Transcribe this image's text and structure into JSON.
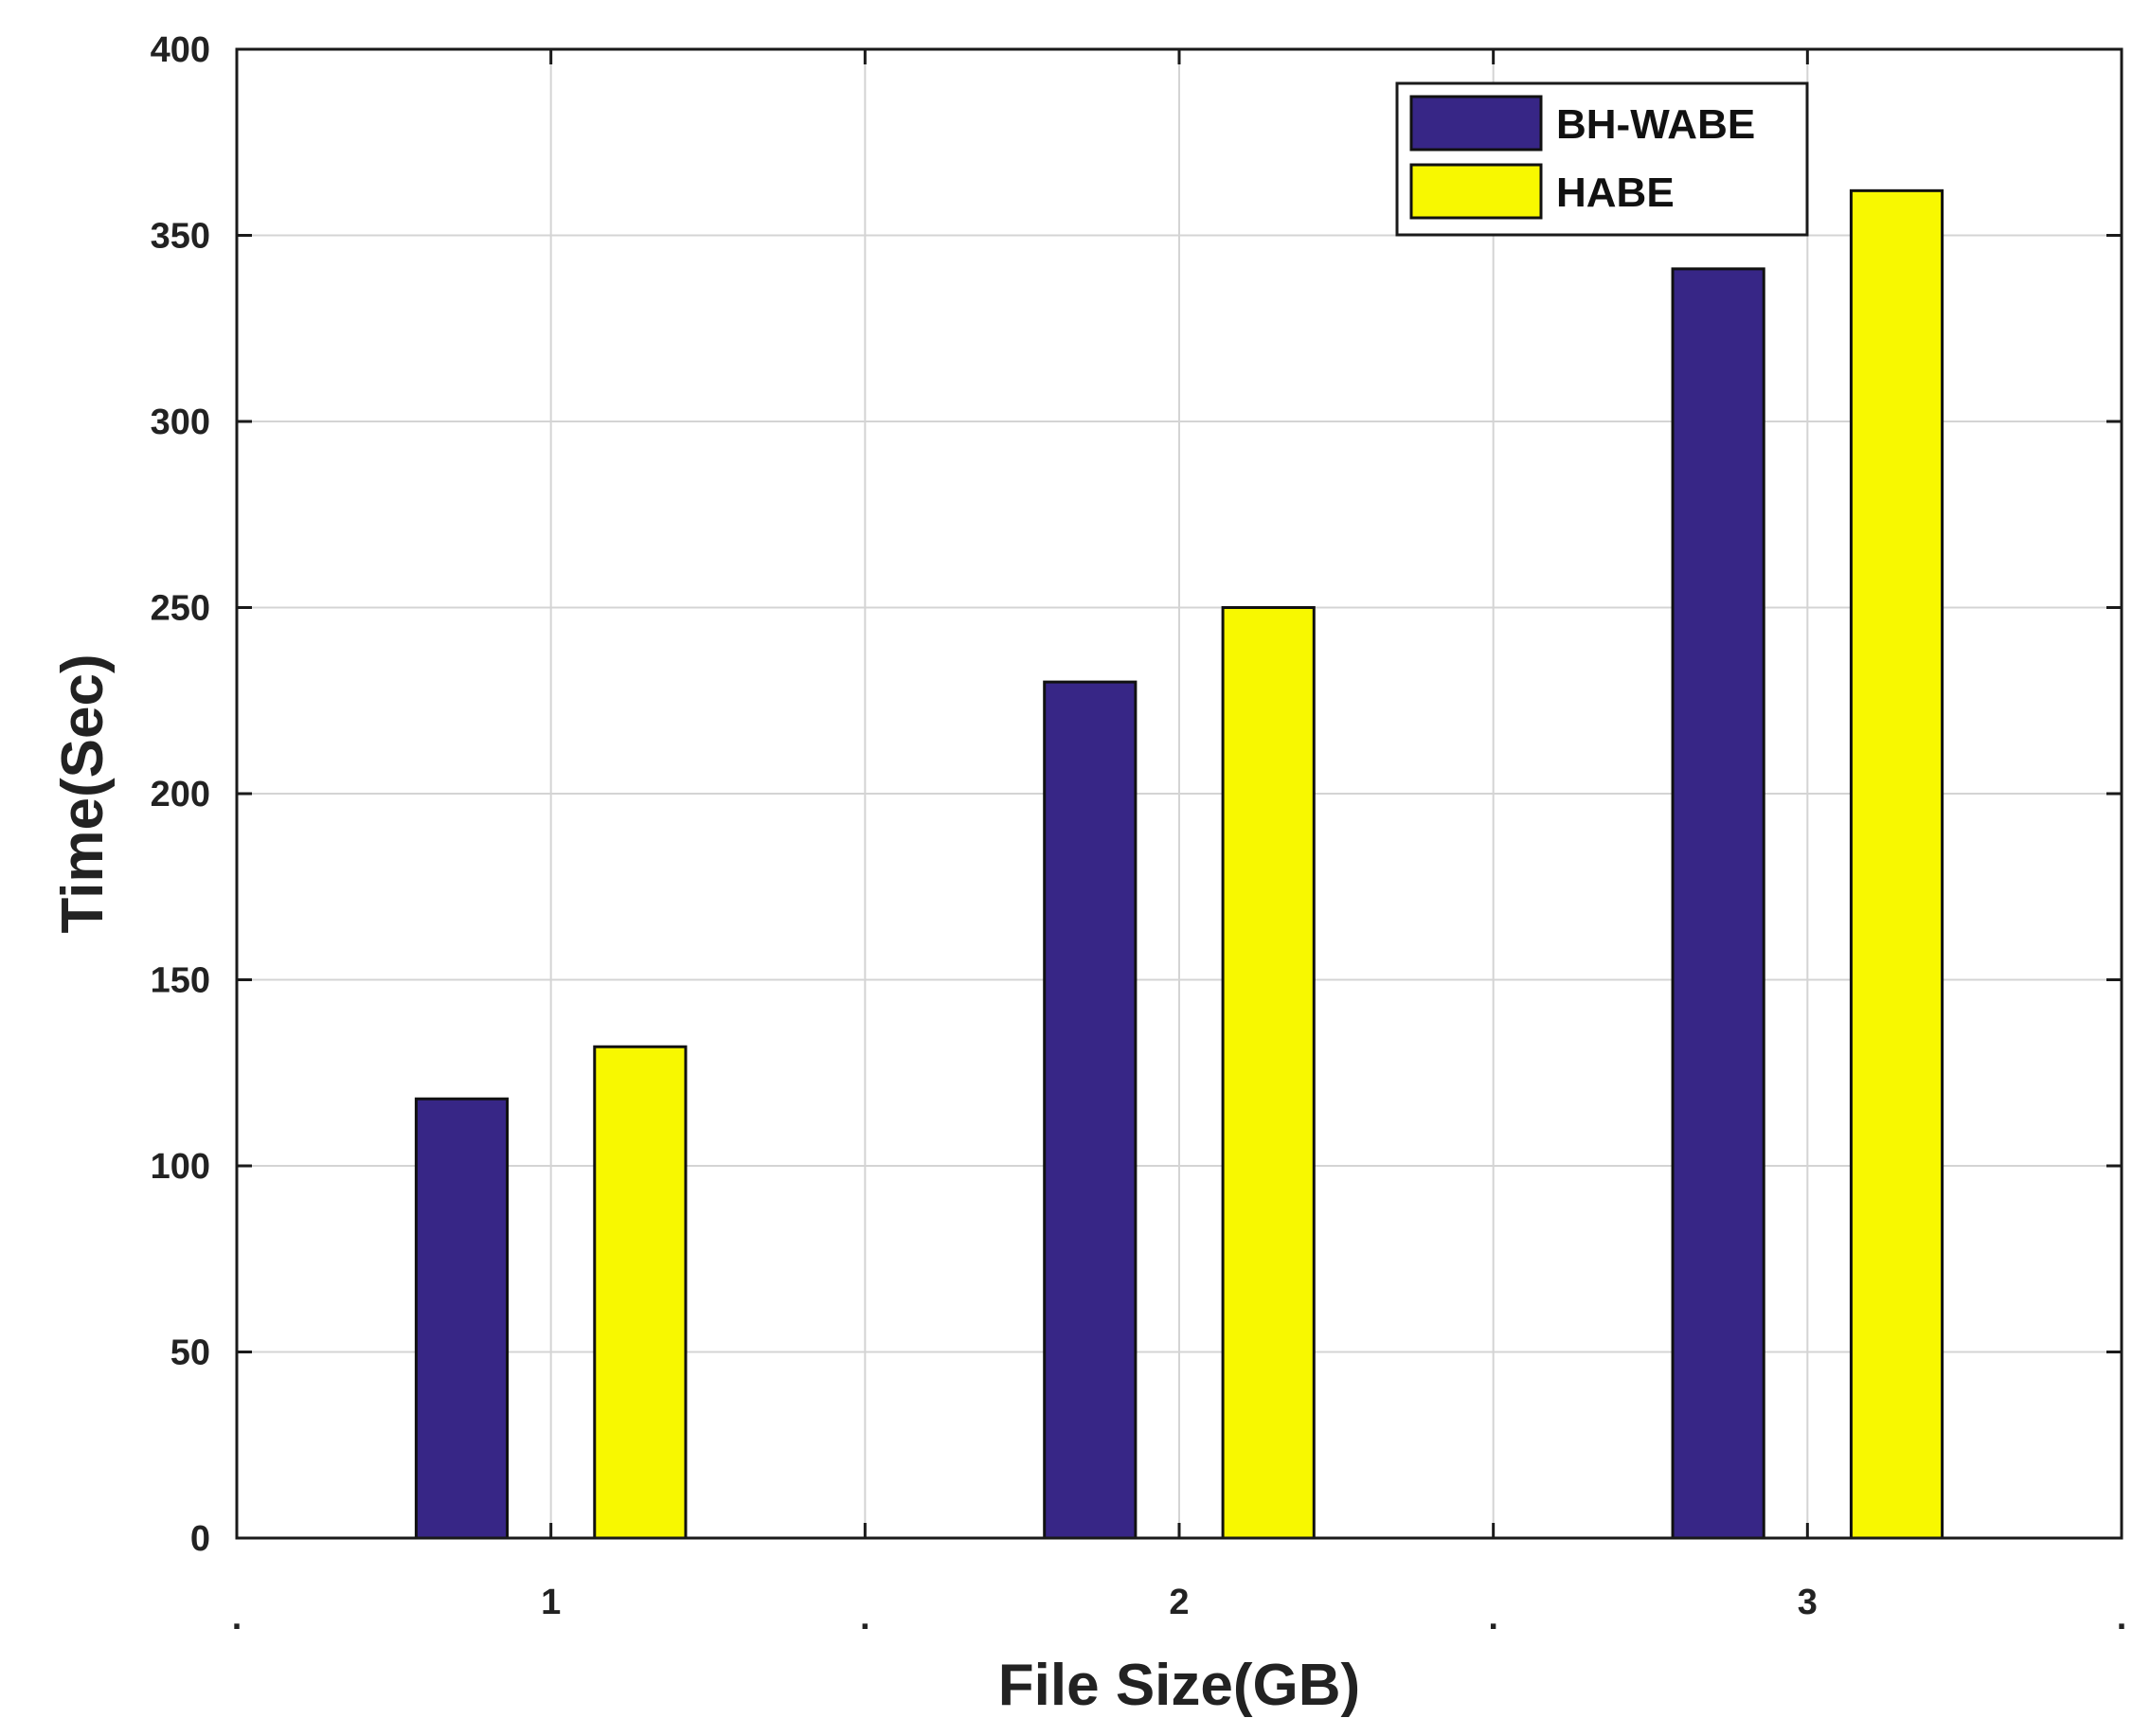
{
  "chart_data": {
    "type": "bar",
    "categories": [
      "1",
      "2",
      "3"
    ],
    "x_positions": [
      1,
      2,
      3
    ],
    "xlim": [
      0.5,
      3.5
    ],
    "x_minor_ticks": [
      0.5,
      1.5,
      2.5,
      3.5
    ],
    "x_minor_tick_label": ".",
    "series": [
      {
        "name": "BH-WABE",
        "values": [
          118,
          230,
          341
        ],
        "color": "#372686"
      },
      {
        "name": "HABE",
        "values": [
          132,
          250,
          362
        ],
        "color": "#f8f800"
      }
    ],
    "title": "",
    "xlabel": "File Size(GB)",
    "ylabel": "Time(Sec)",
    "ylim": [
      0,
      400
    ],
    "yticks": [
      0,
      50,
      100,
      150,
      200,
      250,
      300,
      350,
      400
    ],
    "grid": true,
    "legend_position": "top-right"
  }
}
